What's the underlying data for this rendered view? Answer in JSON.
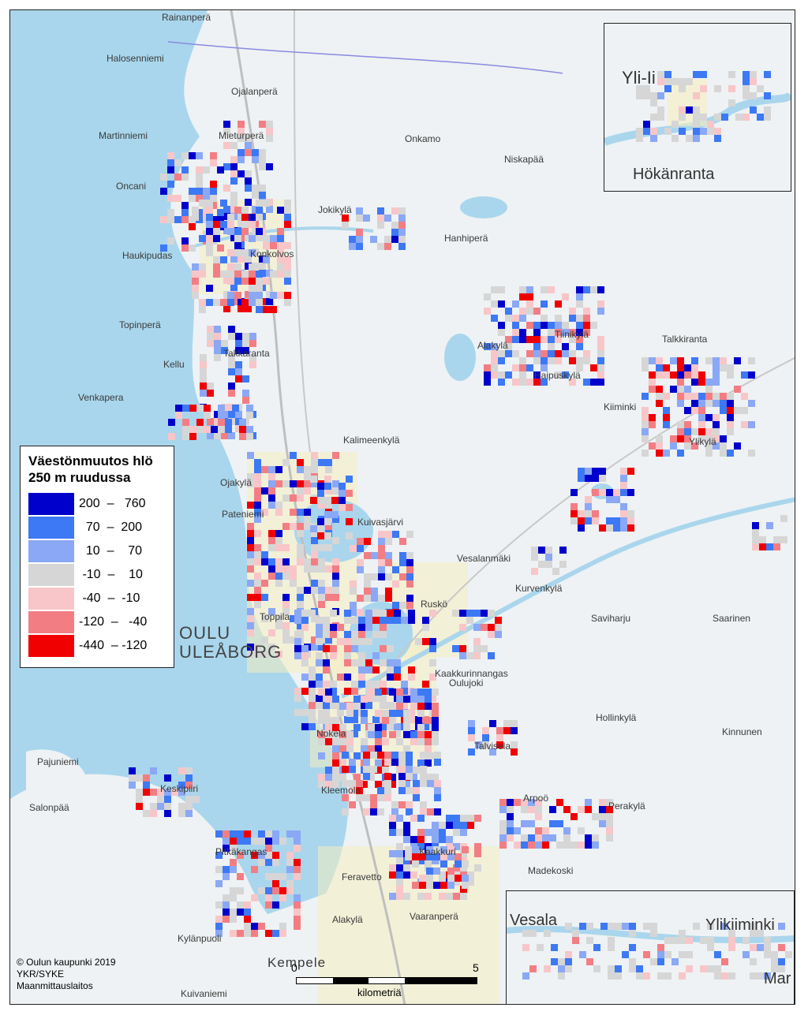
{
  "legend": {
    "title_line1": "Väestönmuutos hlö",
    "title_line2": "250 m ruudussa",
    "classes": [
      {
        "label": "200  –   760",
        "color": "#0000cc"
      },
      {
        "label": "  70  –  200",
        "color": "#3d78f5"
      },
      {
        "label": "  10  –    70",
        "color": "#8aa8f5"
      },
      {
        "label": " -10  –    10",
        "color": "#d6d6d6"
      },
      {
        "label": " -40  –  -10",
        "color": "#f8c6c8"
      },
      {
        "label": "-120  –   -40",
        "color": "#f27e84"
      },
      {
        "label": "-440  – -120",
        "color": "#f00000"
      }
    ]
  },
  "city": {
    "line1": "OULU",
    "line2": "ULEÅBORG"
  },
  "places": [
    "Rainanperä",
    "Halosenniemi",
    "Ojalanperä",
    "Martinniemi",
    "Mieturperä",
    "Onkamo",
    "Niskapää",
    "Oncani",
    "Jokikylä",
    "Haukipudas",
    "Konkolvos",
    "Hanhiperä",
    "Topinperä",
    "Takkaranta",
    "Alakylä",
    "Tiinikylä",
    "Talkkiranta",
    "Kellu",
    "Haipuskylä",
    "Venkapera",
    "Kiiminki",
    "Kalimeenkylä",
    "Ylikylä",
    "Ojakylä",
    "Pateniemi",
    "Kuivasjärvi",
    "Vesalanmäki",
    "Kurvenkylä",
    "Ruskö",
    "Saviharju",
    "Saarinen",
    "Toppila",
    "Kaakkurinnangas",
    "Oulujoki",
    "Hollinkylä",
    "Kinnunen",
    "Nokela",
    "Talvisela",
    "Pajuniemi",
    "Keskipiiri",
    "Kleemola",
    "Arpoö",
    "Perakylä",
    "Salonpää",
    "Pitkäkangas",
    "Kaakkuri",
    "Madekoski",
    "Feravetto",
    "Alakylä",
    "Vaaranperä",
    "Kylänpuoli",
    "Kempele",
    "Kuivaniemi"
  ],
  "inset_top": {
    "place1": "Yli-Ii",
    "place2": "Hökänranta"
  },
  "inset_bottom": {
    "place1": "Vesala",
    "place2": "Ylikiiminki",
    "place3": "Mar"
  },
  "credits": {
    "line1": "© Oulun kaupunki 2019",
    "line2": "YKR/SYKE",
    "line3": "Maanmittauslaitos"
  },
  "scale": {
    "start": "0",
    "end": "5",
    "unit": "kilometriä"
  }
}
